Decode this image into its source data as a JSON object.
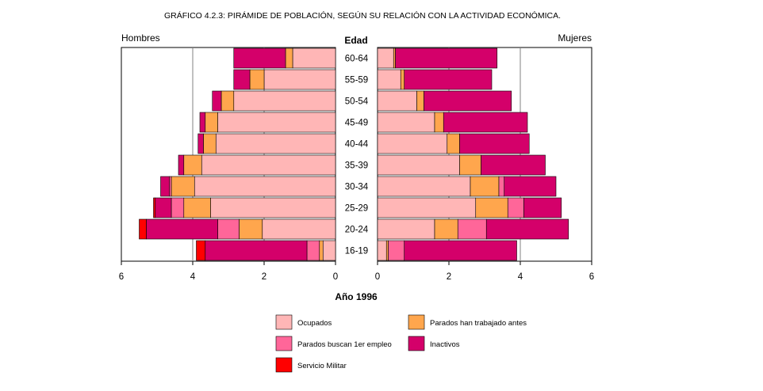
{
  "chart_data": {
    "type": "bar",
    "subtype": "population-pyramid",
    "title": "GRÁFICO 4.2.3: PIRÁMIDE DE POBLACIÓN, SEGÚN SU RELACIÓN CON LA ACTIVIDAD ECONÓMICA.",
    "left_label": "Hombres",
    "right_label": "Mujeres",
    "center_label": "Edad",
    "xlabel": "Año  1996",
    "xlim": [
      0,
      6
    ],
    "ticks": [
      "0",
      "2",
      "4",
      "6"
    ],
    "grid": true,
    "legend_position": "bottom",
    "categories": [
      "60-64",
      "55-59",
      "50-54",
      "45-49",
      "40-44",
      "35-39",
      "30-34",
      "25-29",
      "20-24",
      "16-19"
    ],
    "series": [
      {
        "name": "Ocupados",
        "color": "#ffb6b6",
        "hombres": [
          1.2,
          2.0,
          2.85,
          3.3,
          3.35,
          3.75,
          3.95,
          3.5,
          2.05,
          0.35
        ],
        "mujeres": [
          0.45,
          0.65,
          1.1,
          1.6,
          1.95,
          2.3,
          2.6,
          2.75,
          1.6,
          0.25
        ]
      },
      {
        "name": "Parados han trabajado antes",
        "color": "#ffa64d",
        "hombres": [
          0.2,
          0.4,
          0.35,
          0.35,
          0.35,
          0.5,
          0.65,
          0.75,
          0.65,
          0.1
        ],
        "mujeres": [
          0.05,
          0.1,
          0.2,
          0.25,
          0.35,
          0.6,
          0.8,
          0.9,
          0.65,
          0.05
        ]
      },
      {
        "name": "Parados buscan 1er empleo",
        "color": "#ff6699",
        "hombres": [
          0.0,
          0.0,
          0.0,
          0.0,
          0.0,
          0.0,
          0.05,
          0.35,
          0.6,
          0.35
        ],
        "mujeres": [
          0.0,
          0.0,
          0.0,
          0.0,
          0.0,
          0.0,
          0.15,
          0.45,
          0.8,
          0.45
        ]
      },
      {
        "name": "Inactivos",
        "color": "#d4006a",
        "hombres": [
          1.45,
          0.45,
          0.25,
          0.15,
          0.15,
          0.15,
          0.25,
          0.45,
          2.0,
          2.85
        ],
        "mujeres": [
          2.85,
          2.45,
          2.45,
          2.35,
          1.95,
          1.8,
          1.45,
          1.05,
          2.3,
          3.15
        ]
      },
      {
        "name": "Servicio Militar",
        "color": "#ff0000",
        "hombres": [
          0.0,
          0.0,
          0.0,
          0.0,
          0.0,
          0.0,
          0.0,
          0.05,
          0.2,
          0.25
        ],
        "mujeres": [
          0.0,
          0.0,
          0.0,
          0.0,
          0.0,
          0.0,
          0.0,
          0.0,
          0.0,
          0.0
        ]
      }
    ]
  }
}
